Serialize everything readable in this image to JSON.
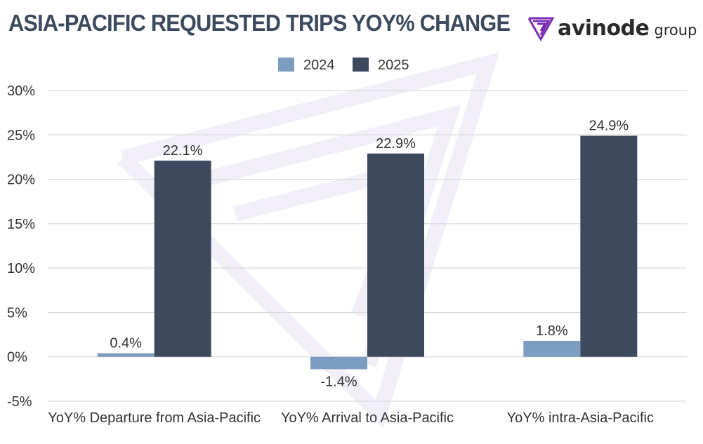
{
  "title": "ASIA-PACIFIC REQUESTED TRIPS YOY% CHANGE",
  "logo": {
    "brand": "avinode",
    "group": "group",
    "icon": "avinode-chevron-logo-icon",
    "color": "#7d2fb3"
  },
  "chart_data": {
    "type": "bar",
    "categories": [
      "YoY% Departure from Asia-Pacific",
      "YoY% Arrival to Asia-Pacific",
      "YoY% intra-Asia-Pacific"
    ],
    "series": [
      {
        "name": "2024",
        "values": [
          0.4,
          -1.4,
          1.8
        ],
        "labels": [
          "0.4%",
          "-1.4%",
          "1.8%"
        ],
        "color": "#7c9cc0"
      },
      {
        "name": "2025",
        "values": [
          22.1,
          22.9,
          24.9
        ],
        "labels": [
          "22.1%",
          "22.9%",
          "24.9%"
        ],
        "color": "#3d4a5e"
      }
    ],
    "ylim": [
      -5,
      30
    ],
    "yticks": [
      30,
      25,
      20,
      15,
      10,
      5,
      0,
      -5
    ],
    "ytick_labels": [
      "30%",
      "25%",
      "20%",
      "15%",
      "10%",
      "5%",
      "0%",
      "-5%"
    ],
    "grid": true,
    "legend_position": "top-center",
    "xlabel": "",
    "ylabel": ""
  }
}
